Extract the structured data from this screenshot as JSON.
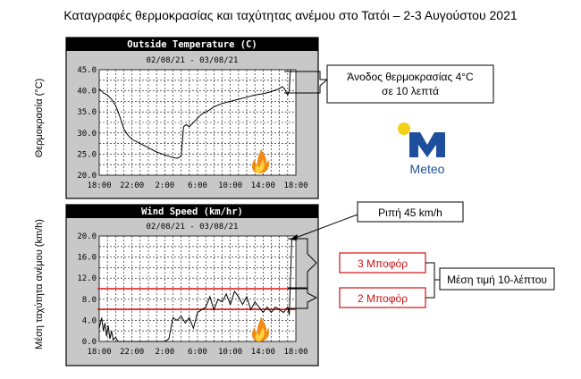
{
  "page_title": "Καταγραφές θερμοκρασίας και ταχύτητας ανέμου στο Τατόι – 2-3 Αυγούστου 2021",
  "logo": {
    "text": "Meteo",
    "icon": "meteo-m-logo",
    "colors": {
      "blue": "#1e4f9c",
      "yellow": "#f3d117"
    }
  },
  "colors": {
    "plot_bg": "#c8c8c8",
    "panel_bg": "#ffffff",
    "title_bar": "#000000",
    "line": "#000000",
    "beaufort_line": "#e01010",
    "label_red": "#d01010"
  },
  "chart_data": [
    {
      "type": "line",
      "title": "Outside Temperature (C)",
      "subtitle": "02/08/21 - 03/08/21",
      "ylabel": "Θερμοκρασία (°C)",
      "ylim": [
        20.0,
        45.0
      ],
      "yticks": [
        "45.0",
        "40.0",
        "35.0",
        "30.0",
        "25.0",
        "20.0"
      ],
      "ytick_values": [
        45,
        40,
        35,
        30,
        25,
        20
      ],
      "xticks": [
        "18:00",
        "22:00",
        "2:00",
        "6:00",
        "10:00",
        "14:00",
        "18:00"
      ],
      "xlim": [
        0,
        24
      ],
      "grid": true,
      "x_unit": "hours since 18:00, 02/08/21",
      "series": [
        {
          "values": [
            [
              0,
              40.5
            ],
            [
              0.5,
              39.5
            ],
            [
              1,
              39
            ],
            [
              1.5,
              38
            ],
            [
              2,
              36.5
            ],
            [
              2.5,
              34
            ],
            [
              3,
              31
            ],
            [
              3.5,
              29.5
            ],
            [
              4,
              28.5
            ],
            [
              5,
              27.5
            ],
            [
              6,
              26.5
            ],
            [
              7,
              25.5
            ],
            [
              8,
              24.8
            ],
            [
              9,
              24.2
            ],
            [
              9.5,
              24.0
            ],
            [
              10,
              24.5
            ],
            [
              10.3,
              31.5
            ],
            [
              10.6,
              32.0
            ],
            [
              11,
              31.5
            ],
            [
              11.5,
              32.5
            ],
            [
              12,
              33.5
            ],
            [
              12.5,
              34.5
            ],
            [
              13,
              35
            ],
            [
              13.5,
              35.5
            ],
            [
              14,
              36.2
            ],
            [
              15,
              37
            ],
            [
              16,
              37.5
            ],
            [
              17,
              38
            ],
            [
              18,
              38.5
            ],
            [
              19,
              39.0
            ],
            [
              20,
              39.3
            ],
            [
              21,
              39.8
            ],
            [
              22,
              40.5
            ],
            [
              22.3,
              41.0
            ],
            [
              22.6,
              40.5
            ],
            [
              23,
              39.0
            ],
            [
              23.2,
              40.0
            ],
            [
              23.3,
              44.0
            ],
            [
              23.4,
              45.0
            ]
          ]
        }
      ],
      "annotation": {
        "text_line1": "Άνοδος θερμοκρασίας 4°C",
        "text_line2": "σε 10 λεπτά"
      }
    },
    {
      "type": "line",
      "title": "Wind Speed (km/hr)",
      "subtitle": "02/08/21 - 03/08/21",
      "ylabel": "Μέση ταχύτητα ανέμου (km/h)",
      "ylim": [
        0.0,
        20.0
      ],
      "yticks": [
        "20.0",
        "16.0",
        "12.0",
        "8.0",
        "4.0",
        "0.0"
      ],
      "ytick_values": [
        20,
        16,
        12,
        8,
        4,
        0
      ],
      "xticks": [
        "18:00",
        "22:00",
        "2:00",
        "6:00",
        "10:00",
        "14:00",
        "18:00"
      ],
      "xlim": [
        0,
        24
      ],
      "grid": true,
      "x_unit": "hours since 18:00, 02/08/21",
      "series": [
        {
          "values": [
            [
              0,
              2.5
            ],
            [
              0.3,
              4.5
            ],
            [
              0.5,
              2.0
            ],
            [
              0.7,
              3.5
            ],
            [
              0.9,
              1.0
            ],
            [
              1.1,
              3.0
            ],
            [
              1.3,
              0.5
            ],
            [
              1.5,
              2.0
            ],
            [
              1.7,
              0.3
            ],
            [
              2.0,
              0.8
            ],
            [
              2.3,
              0
            ],
            [
              3,
              0
            ],
            [
              5,
              0
            ],
            [
              7,
              0
            ],
            [
              8,
              0
            ],
            [
              8.5,
              0.5
            ],
            [
              9.0,
              4.5
            ],
            [
              9.5,
              4.0
            ],
            [
              10.0,
              4.8
            ],
            [
              10.5,
              3.5
            ],
            [
              11,
              4.5
            ],
            [
              11.5,
              2.5
            ],
            [
              12,
              5.5
            ],
            [
              12.5,
              6.0
            ],
            [
              13,
              6.5
            ],
            [
              13.5,
              8.5
            ],
            [
              14,
              6.0
            ],
            [
              14.5,
              8.0
            ],
            [
              15,
              7.5
            ],
            [
              15.5,
              9.0
            ],
            [
              16,
              7.0
            ],
            [
              16.5,
              9.5
            ],
            [
              17,
              8.5
            ],
            [
              17.5,
              7.0
            ],
            [
              18,
              8.5
            ],
            [
              18.5,
              6.0
            ],
            [
              19,
              7.5
            ],
            [
              19.5,
              6.5
            ],
            [
              20,
              5.5
            ],
            [
              20.5,
              6.5
            ],
            [
              21,
              5.5
            ],
            [
              21.5,
              6.5
            ],
            [
              22,
              6.0
            ],
            [
              22.5,
              5.5
            ],
            [
              23,
              6.5
            ],
            [
              23.2,
              5.0
            ],
            [
              23.3,
              10.0
            ],
            [
              23.4,
              14.0
            ],
            [
              23.5,
              19.5
            ]
          ]
        }
      ],
      "beaufort_lines": [
        {
          "value": 10.0,
          "label": "3 Μποφόρ"
        },
        {
          "value": 6.1,
          "label": "2 Μποφόρ"
        }
      ],
      "gust_label": "Ριπή 45 km/h",
      "mean_label": "Μέση τιμή 10-λέπτου"
    }
  ]
}
